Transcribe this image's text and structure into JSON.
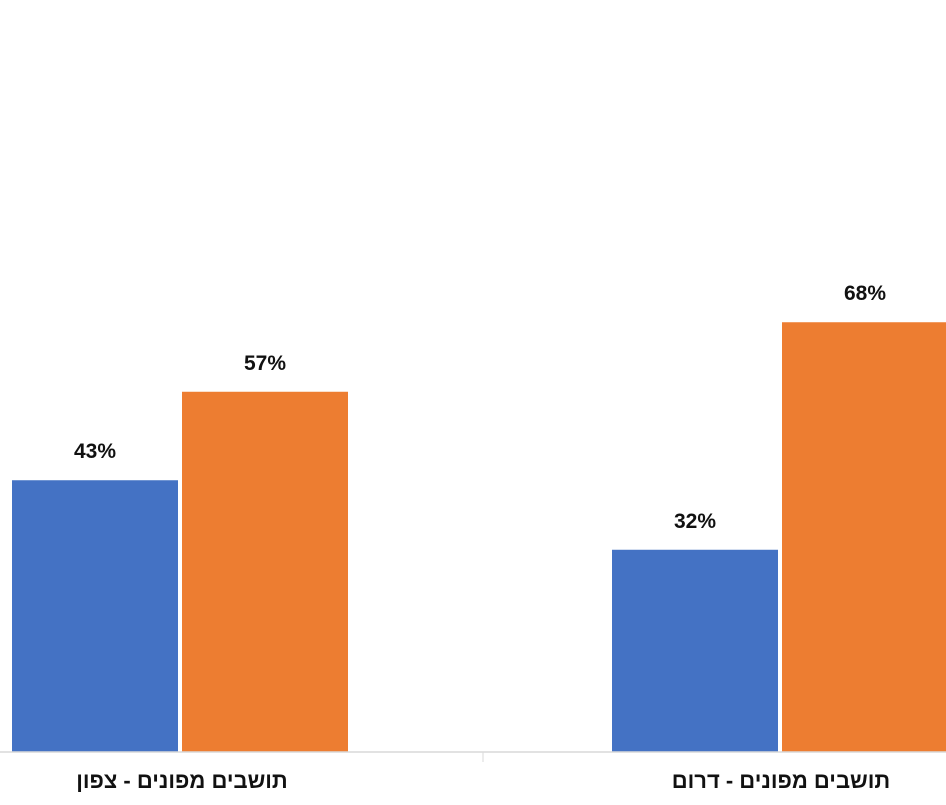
{
  "chart_data": {
    "type": "bar",
    "categories": [
      "תושבים מפונים - צפון",
      "תושבים מפונים - דרום"
    ],
    "series": [
      {
        "values": [
          43,
          32
        ],
        "labels": [
          "43%",
          "32%"
        ],
        "color": "#4472C4"
      },
      {
        "values": [
          57,
          68
        ],
        "labels": [
          "57%",
          "68%"
        ],
        "color": "#ED7D31"
      }
    ],
    "ylim": [
      0,
      100
    ],
    "unit": "%",
    "grid": false,
    "legend": "none"
  }
}
